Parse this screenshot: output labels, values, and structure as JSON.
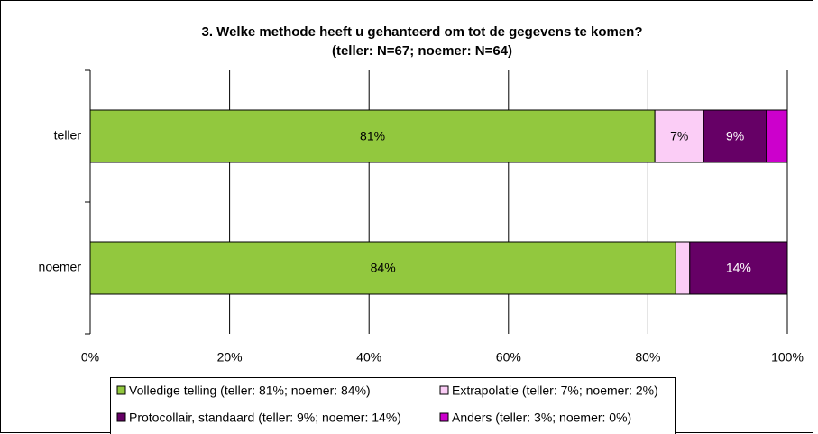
{
  "chart_data": {
    "type": "stacked_barh",
    "title": "3. Welke methode heeft u gehanteerd om tot de gegevens te komen?",
    "subtitle": "(teller: N=67; noemer: N=64)",
    "categories": [
      "teller",
      "noemer"
    ],
    "series": [
      {
        "name": "Volledige telling (teller: 81%; noemer: 84%)",
        "color": "#92c83e",
        "values": [
          81,
          84
        ],
        "value_labels": [
          "81%",
          "84%"
        ]
      },
      {
        "name": "Extrapolatie (teller: 7%; noemer: 2%)",
        "color": "#fbcdf6",
        "values": [
          7,
          2
        ],
        "value_labels": [
          "7%",
          null
        ]
      },
      {
        "name": "Protocollair, standaard (teller: 9%; noemer: 14%)",
        "color": "#660066",
        "values": [
          9,
          14
        ],
        "value_labels": [
          "9%",
          "14%"
        ]
      },
      {
        "name": "Anders (teller: 3%; noemer: 0%)",
        "color": "#cc00cc",
        "values": [
          3,
          0
        ]
      }
    ],
    "xlim": [
      0,
      100
    ],
    "xticks": [
      {
        "value": 0,
        "label": "0%"
      },
      {
        "value": 20,
        "label": "20%"
      },
      {
        "value": 40,
        "label": "40%"
      },
      {
        "value": 60,
        "label": "60%"
      },
      {
        "value": 80,
        "label": "80%"
      },
      {
        "value": 100,
        "label": "100%"
      }
    ],
    "grid": true
  }
}
